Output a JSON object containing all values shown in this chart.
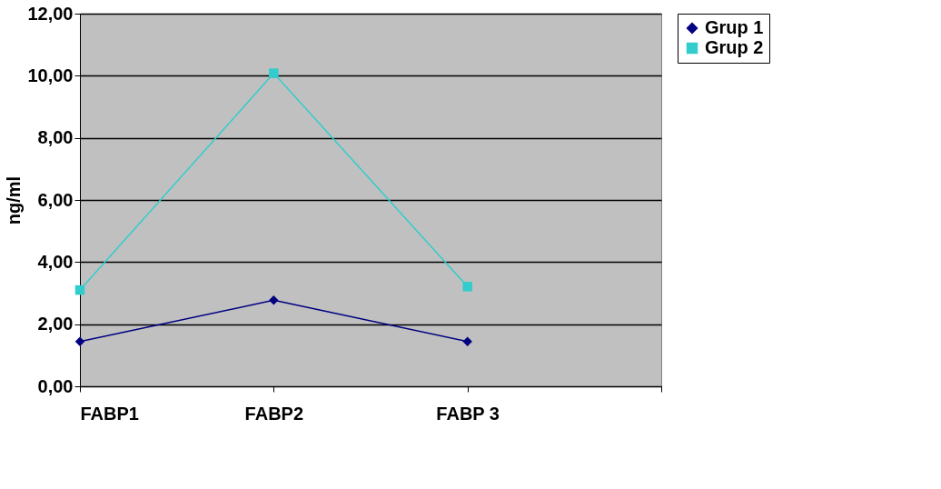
{
  "chart_data": {
    "type": "line",
    "ylabel": "ng/ml",
    "categories": [
      "FABP1",
      "FABP2",
      "FABP 3",
      null
    ],
    "series": [
      {
        "name": "Grup 1",
        "color": "#000080",
        "marker": "diamond",
        "values": [
          1.44,
          2.77,
          1.44,
          null
        ]
      },
      {
        "name": "Grup 2",
        "color": "#33cccc",
        "marker": "square",
        "values": [
          3.1,
          10.08,
          3.21,
          null
        ]
      }
    ],
    "ylim": [
      0,
      12
    ],
    "yticks": [
      {
        "value": 0,
        "label": "0,00"
      },
      {
        "value": 2,
        "label": "2,00"
      },
      {
        "value": 4,
        "label": "4,00"
      },
      {
        "value": 6,
        "label": "6,00"
      },
      {
        "value": 8,
        "label": "8,00"
      },
      {
        "value": 10,
        "label": "10,00"
      },
      {
        "value": 12,
        "label": "12,00"
      }
    ],
    "grid": "y",
    "legend": "right"
  }
}
